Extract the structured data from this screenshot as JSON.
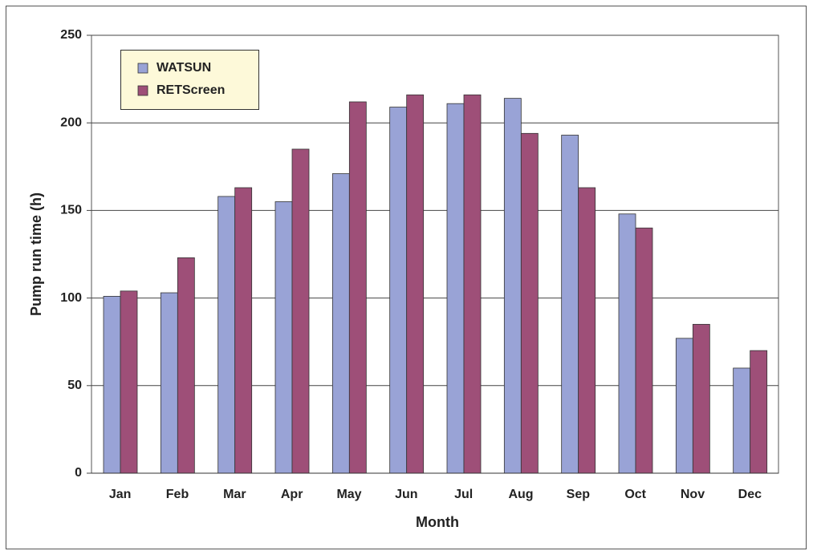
{
  "chart_data": {
    "type": "bar",
    "x_label": "Month",
    "y_label": "Pump run time (h)",
    "categories": [
      "Jan",
      "Feb",
      "Mar",
      "Apr",
      "May",
      "Jun",
      "Jul",
      "Aug",
      "Sep",
      "Oct",
      "Nov",
      "Dec"
    ],
    "series": [
      {
        "name": "WATSUN",
        "color": "#99a3d6",
        "values": [
          101,
          103,
          158,
          155,
          171,
          209,
          211,
          214,
          193,
          148,
          77,
          60
        ]
      },
      {
        "name": "RETScreen",
        "color": "#9e4f78",
        "values": [
          104,
          123,
          163,
          185,
          212,
          216,
          216,
          194,
          163,
          140,
          85,
          70
        ]
      }
    ],
    "ylim": [
      0,
      250
    ],
    "yticks": [
      0,
      50,
      100,
      150,
      200,
      250
    ],
    "grid": true,
    "legend": "upper left"
  }
}
